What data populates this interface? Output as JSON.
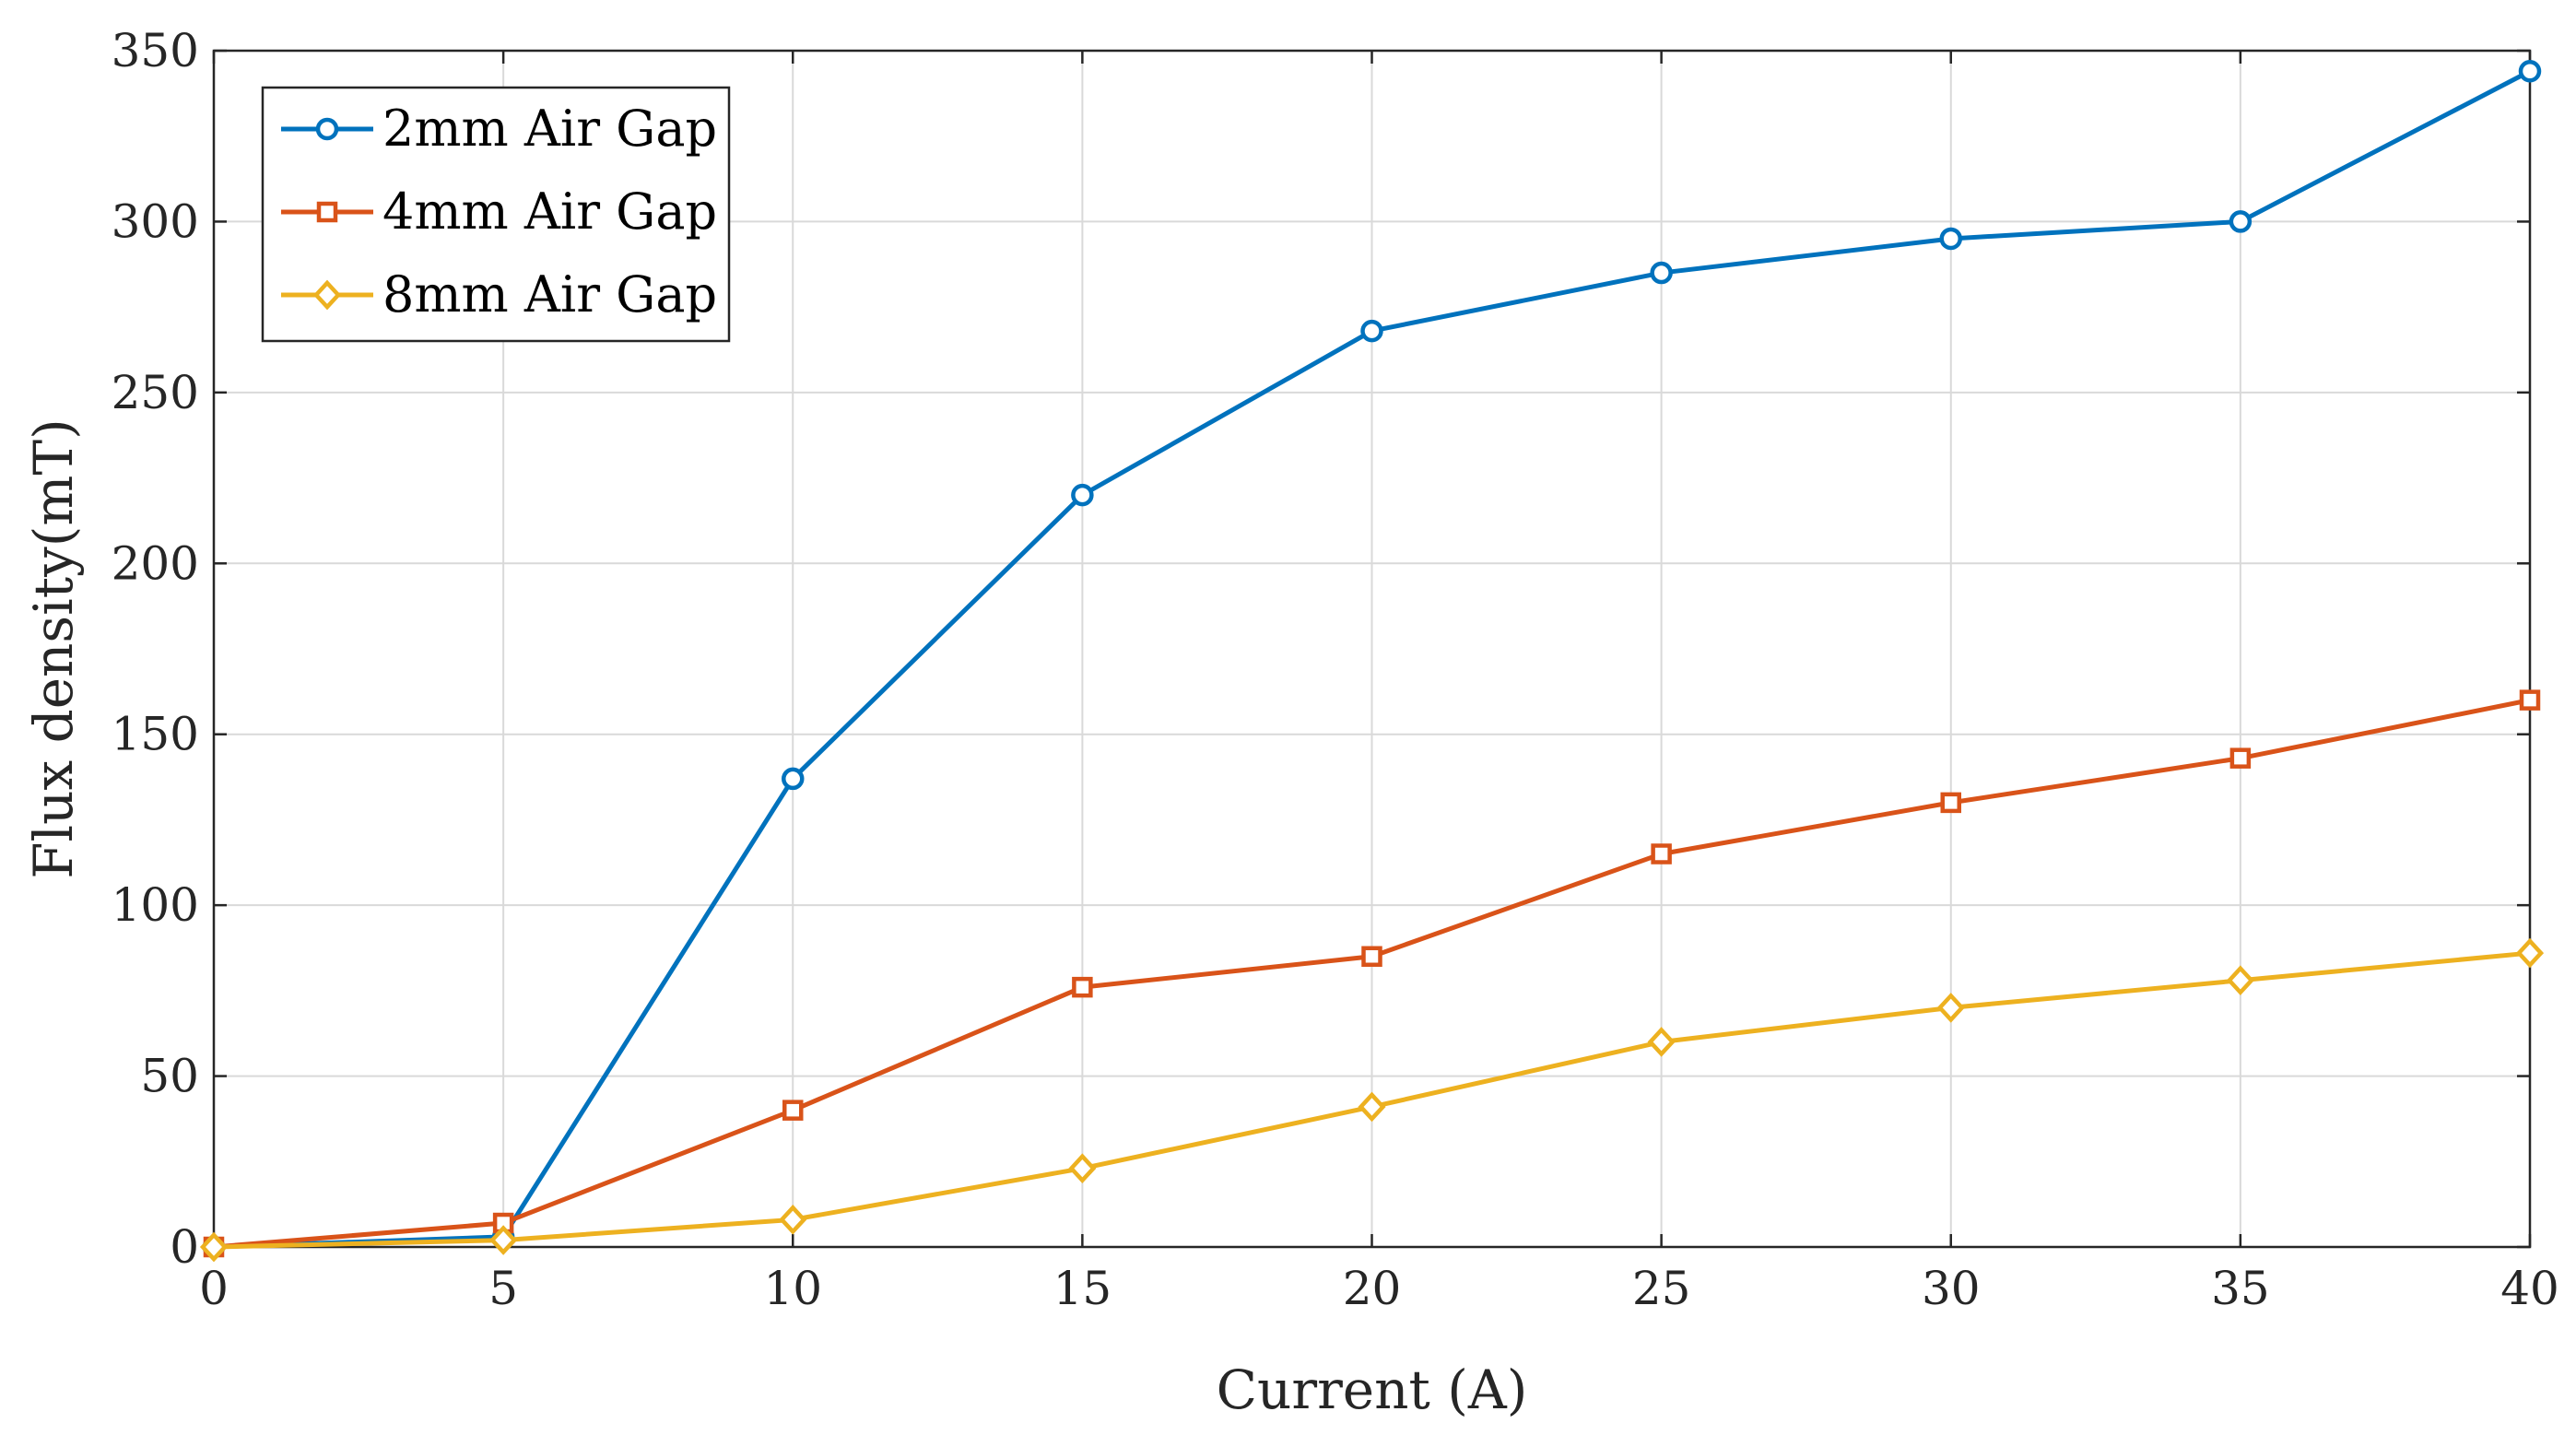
{
  "chart_data": {
    "type": "line",
    "title": "",
    "xlabel": "Current (A)",
    "ylabel": "Flux density(mT)",
    "x": [
      0,
      5,
      10,
      15,
      20,
      25,
      30,
      35,
      40
    ],
    "xlim": [
      0,
      40
    ],
    "ylim": [
      0,
      350
    ],
    "xticks": [
      "0",
      "5",
      "10",
      "15",
      "20",
      "25",
      "30",
      "35",
      "40"
    ],
    "yticks": [
      "0",
      "50",
      "100",
      "150",
      "200",
      "250",
      "300",
      "350"
    ],
    "grid": true,
    "legend_position": "top-left",
    "series": [
      {
        "name": "2mm Air Gap",
        "marker": "circle",
        "color": "#0072BD",
        "values": [
          0,
          3,
          137,
          220,
          268,
          285,
          295,
          300,
          344
        ]
      },
      {
        "name": "4mm Air Gap",
        "marker": "square",
        "color": "#D95319",
        "values": [
          0,
          7,
          40,
          76,
          85,
          115,
          130,
          143,
          160
        ]
      },
      {
        "name": "8mm Air Gap",
        "marker": "diamond",
        "color": "#EDB120",
        "values": [
          0,
          2,
          8,
          23,
          41,
          60,
          70,
          78,
          86
        ]
      }
    ]
  }
}
